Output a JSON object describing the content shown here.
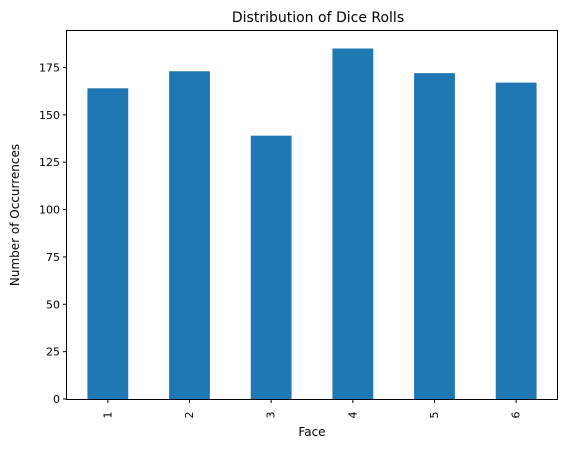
{
  "chart_data": {
    "type": "bar",
    "title": "Distribution of Dice Rolls",
    "xlabel": "Face",
    "ylabel": "Number of Occurrences",
    "categories": [
      "1",
      "2",
      "3",
      "4",
      "5",
      "6"
    ],
    "values": [
      164,
      173,
      139,
      185,
      172,
      167
    ],
    "ylim": [
      0,
      194.25
    ],
    "yticks": [
      0,
      25,
      50,
      75,
      100,
      125,
      150,
      175
    ],
    "grid": false,
    "legend": "none",
    "bar_color": "#1f77b4"
  }
}
